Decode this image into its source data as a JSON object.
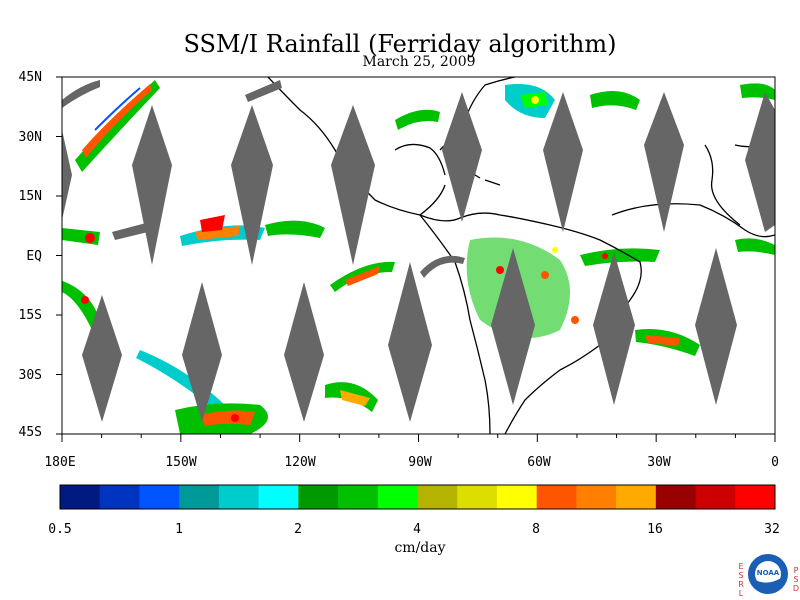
{
  "title": "SSM/I Rainfall (Ferriday algorithm)",
  "subtitle": "March 25, 2009",
  "lat_labels": [
    "45N",
    "30N",
    "15N",
    "EQ",
    "15S",
    "30S",
    "45S"
  ],
  "lon_labels": [
    "180E",
    "150W",
    "120W",
    "90W",
    "60W",
    "30W",
    "0"
  ],
  "colorbar": {
    "unit": "cm/day",
    "tick_labels": [
      "0.5",
      "1",
      "2",
      "4",
      "8",
      "16",
      "32"
    ],
    "colors": [
      "#001a80",
      "#0033c0",
      "#0055ff",
      "#009999",
      "#00cccc",
      "#00ffff",
      "#009900",
      "#00c000",
      "#00ff00",
      "#b3b300",
      "#dddd00",
      "#ffff00",
      "#ff5500",
      "#ff8000",
      "#ffaa00",
      "#990000",
      "#cc0000",
      "#ff0000"
    ]
  },
  "logo": {
    "left_letters": [
      "E",
      "S",
      "R",
      "L"
    ],
    "right_letters": [
      "P",
      "S",
      "D"
    ],
    "text": "NOAA"
  },
  "swath_gap_color": "#666666"
}
